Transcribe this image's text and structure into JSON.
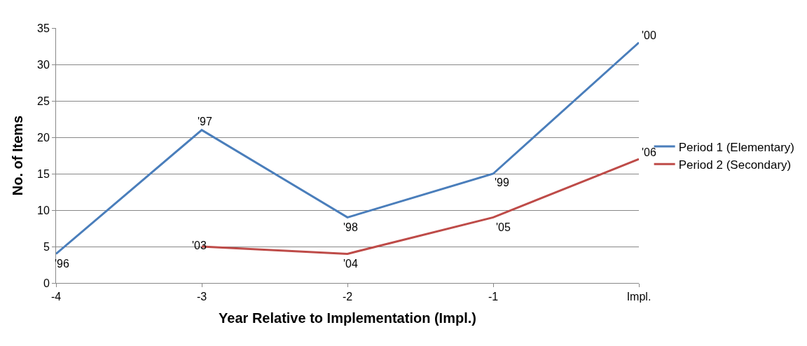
{
  "chart_data": {
    "type": "line",
    "xlabel": "Year Relative to Implementation (Impl.)",
    "ylabel": "No. of Items",
    "x": [
      -4,
      -3,
      -2,
      -1,
      0
    ],
    "series": [
      {
        "name": "Period 1 (Elementary)",
        "color": "#4a7ebb",
        "values": [
          4,
          21,
          9,
          15,
          33
        ]
      },
      {
        "name": "Period 2 (Secondary)",
        "color": "#be4b48",
        "values": [
          null,
          5,
          4,
          9,
          17
        ]
      }
    ],
    "xlim": [
      -4,
      0
    ],
    "xticks": [
      -4,
      -3,
      -2,
      -1,
      {
        "value": 0,
        "label": "Impl."
      }
    ],
    "ylim": [
      0,
      35
    ],
    "yticks": [
      0,
      5,
      10,
      15,
      20,
      25,
      30,
      35
    ],
    "grid": "y",
    "legend": "right",
    "marker": "none",
    "line_style": "solid",
    "annotations": [
      {
        "text": "'96",
        "x": -4,
        "y": 4
      },
      {
        "text": "'97",
        "x": -3,
        "y": 21
      },
      {
        "text": "'98",
        "x": -2,
        "y": 9
      },
      {
        "text": "'99",
        "x": -1,
        "y": 15
      },
      {
        "text": "'00",
        "x": 0,
        "y": 33
      },
      {
        "text": "'03",
        "x": -3,
        "y": 5
      },
      {
        "text": "'04",
        "x": -2,
        "y": 4
      },
      {
        "text": "'05",
        "x": -1,
        "y": 9
      },
      {
        "text": "'06",
        "x": 0,
        "y": 17
      }
    ]
  }
}
